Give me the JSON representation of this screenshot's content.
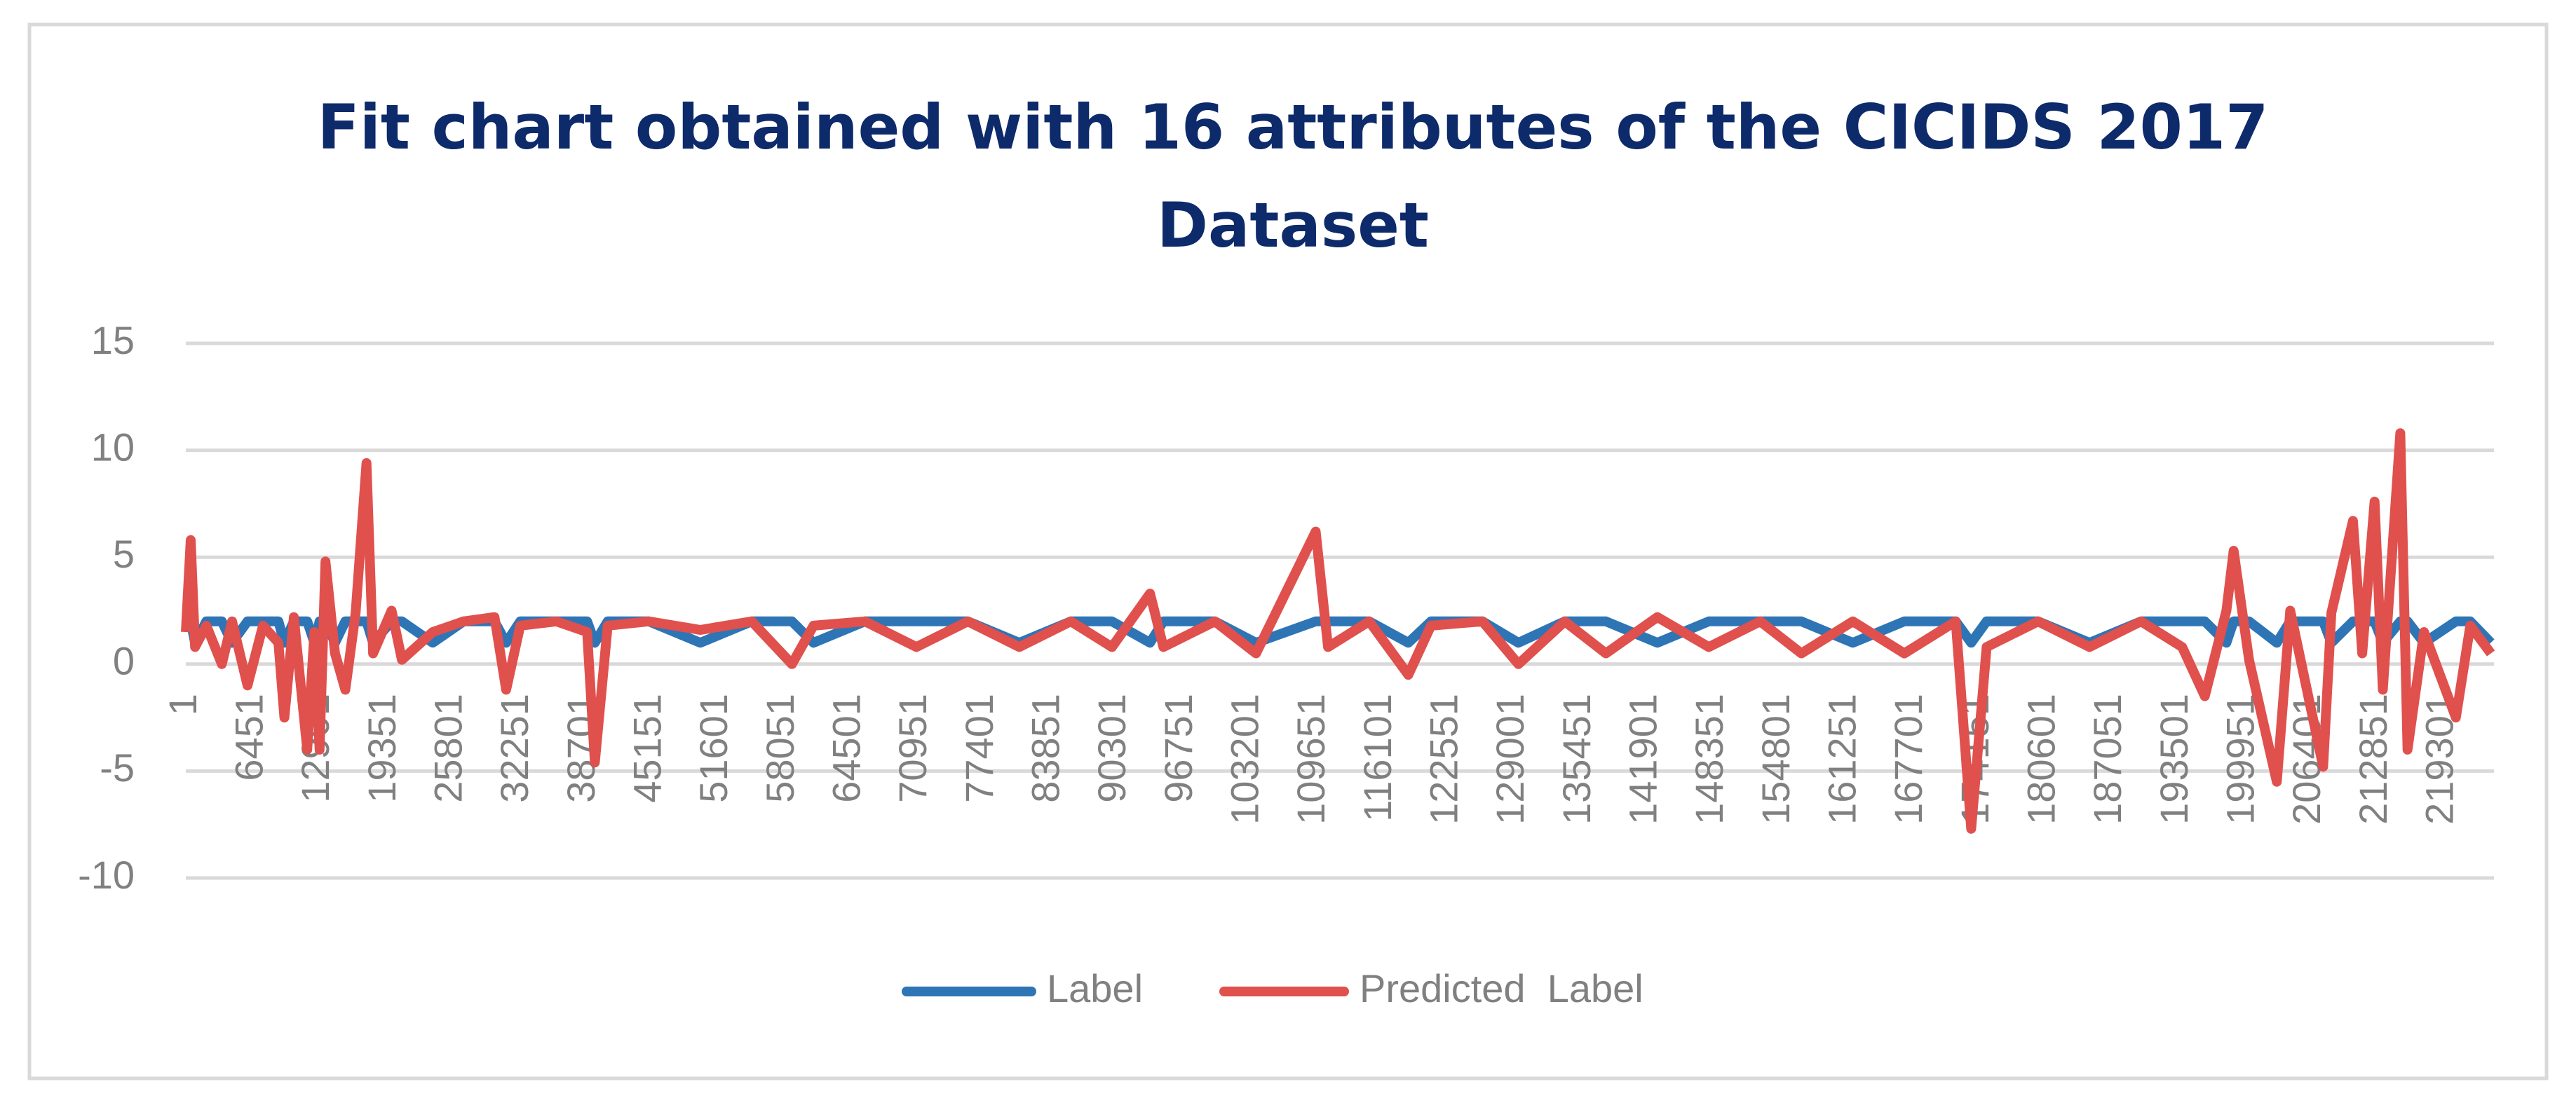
{
  "chart_data": {
    "type": "line",
    "title": "Fit chart obtained with 16 attributes of the CICIDS 2017 Dataset",
    "x": [
      1,
      480,
      900,
      2000,
      3500,
      4500,
      6000,
      7500,
      9000,
      9580,
      10500,
      11800,
      12500,
      13000,
      13570,
      14500,
      15500,
      16500,
      17560,
      18200,
      20000,
      21000,
      24000,
      27000,
      30000,
      31130,
      32500,
      36000,
      39000,
      39750,
      41000,
      45000,
      50000,
      55000,
      58900,
      61000,
      66000,
      71000,
      76000,
      81000,
      86000,
      90000,
      93700,
      95000,
      100000,
      104000,
      109800,
      111000,
      115000,
      118800,
      121000,
      126000,
      129500,
      134000,
      138000,
      143000,
      148000,
      153000,
      157000,
      162000,
      167000,
      172000,
      173500,
      175000,
      180000,
      185000,
      190000,
      194000,
      196200,
      198300,
      199000,
      200500,
      203200,
      204500,
      207700,
      208500,
      210600,
      211500,
      212700,
      213500,
      215200,
      215900,
      217500,
      220600,
      222000,
      224000
    ],
    "series": [
      {
        "name": "Label",
        "color": "#2e75b6",
        "values": [
          2,
          2,
          1,
          2,
          2,
          1,
          2,
          2,
          2,
          1,
          2,
          2,
          1,
          2,
          2,
          1,
          2,
          2,
          2,
          1,
          2,
          2,
          1,
          2,
          2,
          1,
          2,
          2,
          2,
          1,
          2,
          2,
          1,
          2,
          2,
          1,
          2,
          2,
          2,
          1,
          2,
          2,
          1,
          2,
          2,
          1,
          2,
          2,
          2,
          1,
          2,
          2,
          1,
          2,
          2,
          1,
          2,
          2,
          2,
          1,
          2,
          2,
          1,
          2,
          2,
          1,
          2,
          2,
          2,
          1,
          2,
          2,
          1,
          2,
          2,
          1,
          2,
          2,
          2,
          1,
          2,
          2,
          1,
          2,
          2,
          1
        ]
      },
      {
        "name": "Predicted  Label",
        "color": "#e0504d",
        "values": [
          1.5,
          5.8,
          0.8,
          1.8,
          0,
          2,
          -1,
          1.8,
          1,
          -2.5,
          2.2,
          -4,
          1.5,
          -4,
          4.8,
          0.5,
          -1.2,
          2.4,
          9.4,
          0.5,
          2.5,
          0.2,
          1.5,
          2,
          2.2,
          -1.2,
          1.8,
          2,
          1.5,
          -4.6,
          1.8,
          2,
          1.6,
          2,
          0,
          1.8,
          2,
          0.8,
          2,
          0.8,
          2,
          0.8,
          3.3,
          0.8,
          2,
          0.5,
          6.2,
          0.8,
          2,
          -0.5,
          1.8,
          2,
          0,
          2,
          0.5,
          2.2,
          0.8,
          2,
          0.5,
          2,
          0.5,
          2,
          -7.7,
          0.8,
          2,
          0.8,
          2,
          0.8,
          -1.5,
          2.5,
          5.3,
          0.2,
          -5.5,
          2.5,
          -4.8,
          2.4,
          6.7,
          0.5,
          7.6,
          -1.2,
          10.8,
          -4,
          1.5,
          -2.5,
          1.8,
          0.5
        ]
      }
    ],
    "xlim": [
      1,
      224300
    ],
    "xticks": [
      1,
      6451,
      12901,
      19351,
      25801,
      32251,
      38701,
      45151,
      51601,
      58051,
      64501,
      70951,
      77401,
      83851,
      90301,
      96751,
      103201,
      109651,
      116101,
      122551,
      129001,
      135451,
      141901,
      148351,
      154801,
      161251,
      167701,
      174151,
      180601,
      187051,
      193501,
      199951,
      206401,
      212851,
      219301
    ],
    "ylim": [
      -10,
      15
    ],
    "yticks": [
      -10,
      -5,
      0,
      5,
      10,
      15
    ],
    "grid": true,
    "legend": "bottom"
  }
}
